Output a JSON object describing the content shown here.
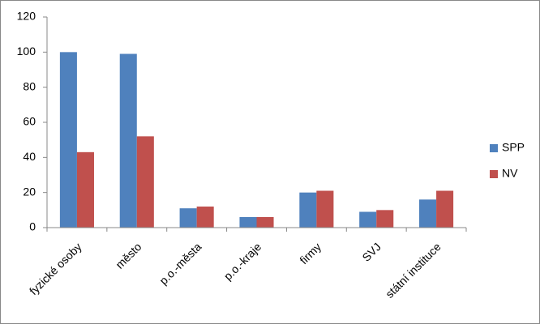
{
  "chart_data": {
    "type": "bar",
    "categories": [
      "fyzické osoby",
      "město",
      "p.o.-města",
      "p.o.-kraje",
      "firmy",
      "SVJ",
      "státní instituce"
    ],
    "series": [
      {
        "name": "SPP",
        "color": "#4f81bd",
        "values": [
          100,
          99,
          11,
          6,
          20,
          9,
          16
        ]
      },
      {
        "name": "NV",
        "color": "#c0504d",
        "values": [
          43,
          52,
          12,
          6,
          21,
          10,
          21
        ]
      }
    ],
    "ylim": [
      0,
      120
    ],
    "yticks": [
      0,
      20,
      40,
      60,
      80,
      100,
      120
    ],
    "grid": false,
    "legend": "right"
  }
}
